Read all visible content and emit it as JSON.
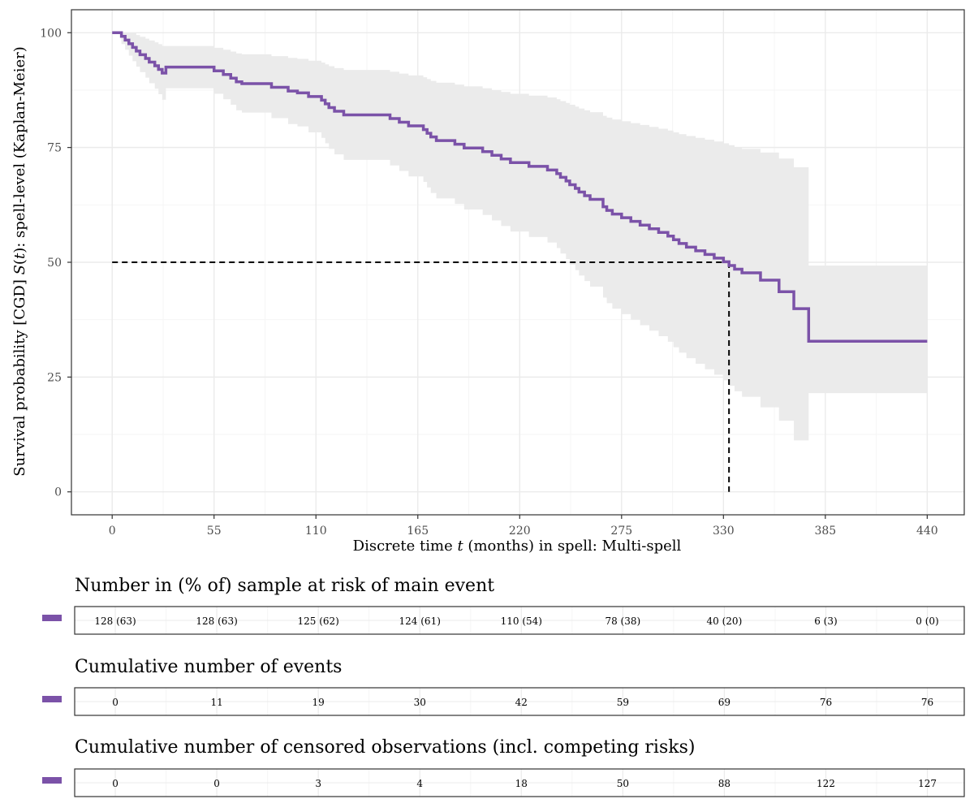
{
  "chart_data": {
    "type": "line",
    "subtype": "kaplan-meier step survival curve with confidence band",
    "xlabel_parts": [
      "Discrete time ",
      "t",
      " (months) in spell: Multi-spell"
    ],
    "ylabel_parts": [
      "Survival probability [CGD] ",
      "S",
      "(",
      "t",
      "): spell-level (Kaplan-Meier)"
    ],
    "xlim": [
      -22,
      460
    ],
    "ylim": [
      -5,
      105
    ],
    "x_ticks": [
      0,
      55,
      110,
      165,
      220,
      275,
      330,
      385,
      440
    ],
    "x_tick_labels": [
      "0",
      "55",
      "110",
      "165",
      "220",
      "275",
      "330",
      "385",
      "440"
    ],
    "y_ticks": [
      0,
      25,
      50,
      75,
      100
    ],
    "y_tick_labels": [
      "0",
      "25",
      "50",
      "75",
      "100"
    ],
    "grid": true,
    "series": [
      {
        "color": "#7b52a8",
        "x": [
          0,
          5,
          7,
          9,
          11,
          13,
          15,
          18,
          20,
          23,
          25,
          27,
          29,
          40,
          50,
          55,
          60,
          64,
          67,
          70,
          75,
          80,
          86,
          90,
          95,
          100,
          106,
          110,
          113,
          115,
          117,
          120,
          125,
          130,
          140,
          150,
          155,
          160,
          165,
          168,
          170,
          172,
          175,
          180,
          185,
          190,
          195,
          200,
          205,
          210,
          215,
          220,
          225,
          230,
          235,
          240,
          242,
          245,
          247,
          250,
          252,
          255,
          258,
          260,
          265,
          267,
          270,
          275,
          280,
          285,
          290,
          295,
          300,
          303,
          306,
          310,
          315,
          320,
          325,
          330,
          333,
          336,
          340,
          345,
          350,
          355,
          360,
          365,
          368,
          372,
          376,
          380,
          440
        ],
        "y": [
          100,
          99.2,
          98.4,
          97.6,
          96.8,
          96,
          95.2,
          94.4,
          93.6,
          92.8,
          92,
          91.2,
          92.5,
          92.5,
          92.5,
          91.7,
          90.9,
          90.1,
          89.3,
          88.9,
          88.9,
          88.9,
          88.1,
          88.1,
          87.3,
          86.9,
          86.1,
          86.1,
          85.3,
          84.5,
          83.7,
          82.9,
          82.1,
          82.1,
          82.1,
          81.3,
          80.5,
          79.7,
          79.7,
          78.9,
          78.1,
          77.3,
          76.5,
          76.5,
          75.7,
          74.9,
          74.9,
          74.1,
          73.3,
          72.5,
          71.7,
          71.7,
          70.9,
          70.9,
          70.1,
          69.3,
          68.5,
          67.7,
          66.9,
          66.1,
          65.3,
          64.5,
          63.7,
          63.7,
          62.1,
          61.3,
          60.5,
          59.7,
          58.9,
          58.1,
          57.3,
          56.5,
          55.7,
          54.9,
          54.1,
          53.3,
          52.5,
          51.7,
          50.9,
          50.1,
          49.3,
          48.5,
          47.7,
          47.7,
          46.1,
          46.1,
          43.6,
          43.6,
          39.9,
          39.9,
          32.8,
          32.8,
          32.8
        ],
        "ci_lower": [
          100,
          97.5,
          96.3,
          95.0,
          93.8,
          92.6,
          91.4,
          90.2,
          89.0,
          87.8,
          86.6,
          85.4,
          87.9,
          87.9,
          87.9,
          86.7,
          85.5,
          84.3,
          83.1,
          82.6,
          82.6,
          82.6,
          81.4,
          81.4,
          80.1,
          79.6,
          78.3,
          78.3,
          77.1,
          75.9,
          74.7,
          73.5,
          72.3,
          72.3,
          72.3,
          71.1,
          69.9,
          68.7,
          68.7,
          67.5,
          66.3,
          65.1,
          63.9,
          63.9,
          62.7,
          61.5,
          61.5,
          60.3,
          59.1,
          57.9,
          56.7,
          56.7,
          55.5,
          55.5,
          54.3,
          53.1,
          51.9,
          50.7,
          49.5,
          48.3,
          47.1,
          45.9,
          44.7,
          44.7,
          42.3,
          41.1,
          39.9,
          38.7,
          37.5,
          36.3,
          35.1,
          33.9,
          32.7,
          31.5,
          30.3,
          29.1,
          27.9,
          26.7,
          25.5,
          24.3,
          23.1,
          21.9,
          20.7,
          20.7,
          18.4,
          18.4,
          15.5,
          15.5,
          11.2,
          11.2,
          21.5,
          21.5,
          21.5
        ],
        "ci_upper": [
          100,
          100,
          100,
          100,
          99.9,
          99.5,
          99.1,
          98.7,
          98.3,
          97.9,
          97.5,
          97.1,
          97.1,
          97.1,
          97.1,
          96.7,
          96.3,
          95.9,
          95.5,
          95.3,
          95.3,
          95.3,
          94.9,
          94.9,
          94.5,
          94.3,
          93.9,
          93.9,
          93.5,
          93.1,
          92.7,
          92.3,
          91.9,
          91.9,
          91.9,
          91.5,
          91.1,
          90.7,
          90.7,
          90.3,
          89.9,
          89.5,
          89.1,
          89.1,
          88.7,
          88.3,
          88.3,
          87.9,
          87.5,
          87.1,
          86.7,
          86.7,
          86.3,
          86.3,
          85.9,
          85.5,
          85.1,
          84.7,
          84.3,
          83.9,
          83.5,
          83.1,
          82.7,
          82.7,
          81.9,
          81.5,
          81.1,
          80.7,
          80.3,
          79.9,
          79.5,
          79.1,
          78.7,
          78.3,
          77.9,
          77.5,
          77.1,
          76.7,
          76.3,
          75.9,
          75.5,
          75.1,
          74.7,
          74.7,
          73.9,
          73.9,
          72.6,
          72.6,
          70.7,
          70.7,
          49.3,
          49.3,
          49.3
        ]
      }
    ],
    "reference_lines": {
      "median_y": 50,
      "median_x": 333,
      "style": "dashed"
    }
  },
  "risk_tables": [
    {
      "title": "Number in (% of) sample at risk of main event",
      "values": [
        "128 (63)",
        "128 (63)",
        "125 (62)",
        "124 (61)",
        "110 (54)",
        "78 (38)",
        "40 (20)",
        "6 (3)",
        "0 (0)"
      ]
    },
    {
      "title": "Cumulative number of events",
      "values": [
        "0",
        "11",
        "19",
        "30",
        "42",
        "59",
        "69",
        "76",
        "76"
      ]
    },
    {
      "title": "Cumulative number of censored observations (incl. competing risks)",
      "values": [
        "0",
        "0",
        "3",
        "4",
        "18",
        "50",
        "88",
        "122",
        "127"
      ]
    }
  ],
  "colors": {
    "series": "#7b52a8",
    "band": "#ebebeb",
    "grid_major": "#ebebeb",
    "grid_minor": "#f5f5f5",
    "panel_border": "#333333"
  }
}
